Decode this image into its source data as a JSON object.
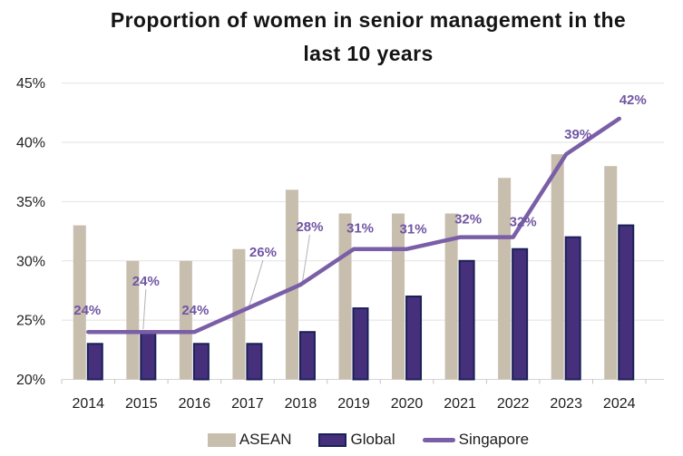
{
  "header": {
    "title_line1": "Proportion of women in senior management in the",
    "title_line2": "last 10 years"
  },
  "chart_data": {
    "type": "bar",
    "title": "Proportion of women in senior management in the last 10 years",
    "categories": [
      "2014",
      "2015",
      "2016",
      "2017",
      "2018",
      "2019",
      "2020",
      "2021",
      "2022",
      "2023",
      "2024"
    ],
    "series": [
      {
        "name": "ASEAN",
        "type": "bar",
        "color": "#c7beae",
        "values": [
          33,
          30,
          30,
          31,
          36,
          34,
          34,
          34,
          37,
          39,
          38
        ]
      },
      {
        "name": "Global",
        "type": "bar",
        "color": "#46307c",
        "border_color": "#1a2157",
        "values": [
          23,
          24,
          23,
          23,
          24,
          26,
          27,
          30,
          31,
          32,
          33
        ]
      },
      {
        "name": "Singapore",
        "type": "line",
        "color": "#7a5fa7",
        "values": [
          24,
          24,
          24,
          26,
          28,
          31,
          31,
          32,
          32,
          39,
          42
        ],
        "labels": [
          "24%",
          "24%",
          "24%",
          "26%",
          "28%",
          "31%",
          "31%",
          "32%",
          "32%",
          "39%",
          "42%"
        ]
      }
    ],
    "ylim": [
      20,
      45
    ],
    "yticks": [
      20,
      25,
      30,
      35,
      40,
      45
    ],
    "ytick_labels": [
      "20%",
      "25%",
      "30%",
      "35%",
      "40%",
      "45%"
    ],
    "callout_indices": [
      1,
      3,
      4
    ],
    "grid": "horizontal",
    "legend_position": "bottom",
    "colors": {
      "point_label": "#7156a4",
      "gridline": "#e2e2e2",
      "axis": "#d6d6d6",
      "tick": "#c4c4c4",
      "leader_line": "#b3b3b3",
      "text": "#1d1d1d"
    }
  }
}
